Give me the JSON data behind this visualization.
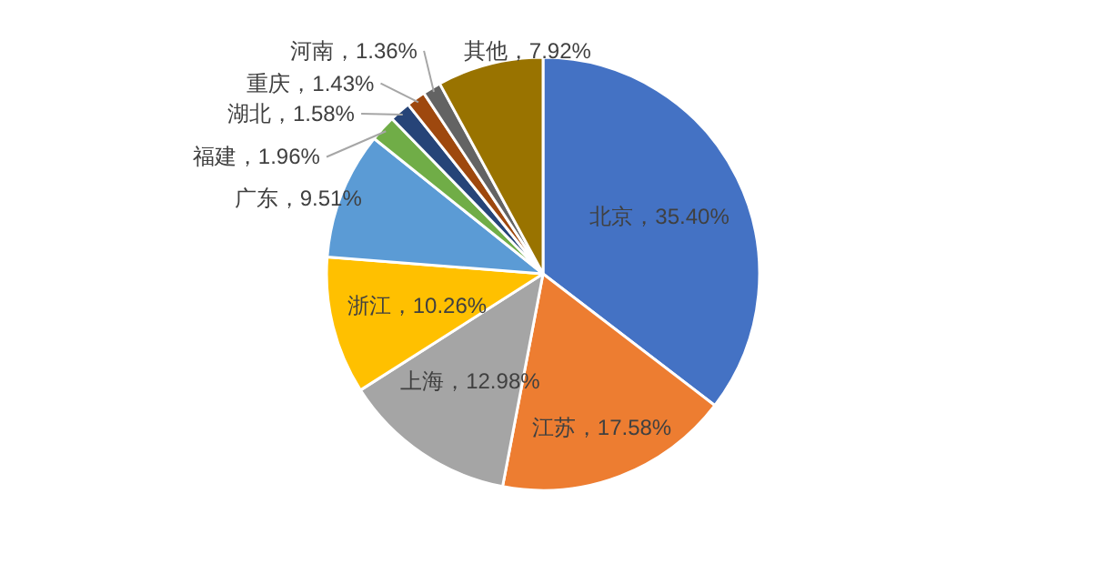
{
  "chart_data": {
    "type": "pie",
    "categories": [
      "北京",
      "江苏",
      "上海",
      "浙江",
      "广东",
      "福建",
      "湖北",
      "重庆",
      "河南",
      "其他"
    ],
    "values": [
      35.4,
      17.58,
      12.98,
      10.26,
      9.51,
      1.96,
      1.58,
      1.43,
      1.36,
      7.92
    ],
    "colors": [
      "#4472c4",
      "#ed7d31",
      "#a5a5a5",
      "#ffc000",
      "#5b9bd5",
      "#70ad47",
      "#264478",
      "#9e480e",
      "#636363",
      "#997300"
    ],
    "value_labels": [
      "35.40%",
      "17.58%",
      "12.98%",
      "10.26%",
      "9.51%",
      "1.96%",
      "1.58%",
      "1.43%",
      "1.36%",
      "7.92%"
    ]
  }
}
